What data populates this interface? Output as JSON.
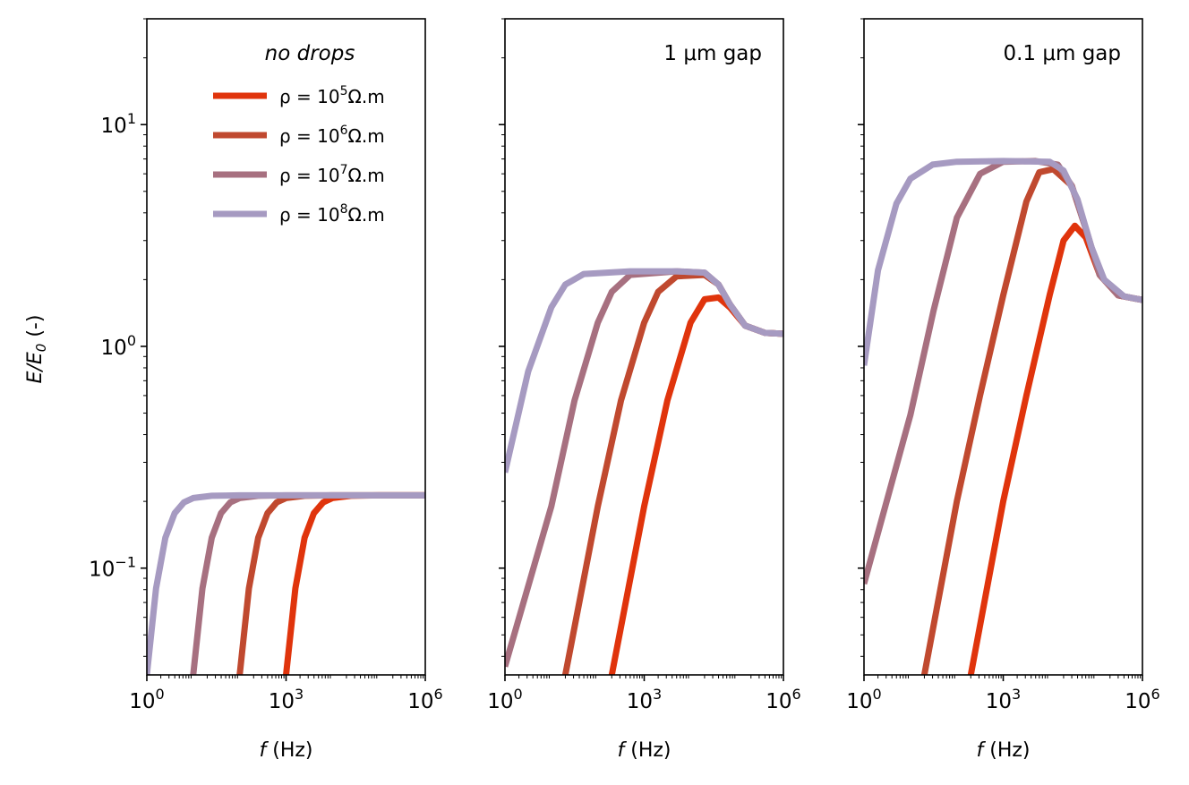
{
  "figure": {
    "ylabel_main": "E/E",
    "ylabel_sub": "0",
    "ylabel_unit": " (-)"
  },
  "legend": {
    "title": "no drops",
    "prefix": "ρ = 10",
    "suffix": "Ω.m",
    "entries": [
      {
        "exp": "5",
        "color": "#e0340c"
      },
      {
        "exp": "6",
        "color": "#c0492f"
      },
      {
        "exp": "7",
        "color": "#a77080"
      },
      {
        "exp": "8",
        "color": "#a69ac1"
      }
    ]
  },
  "axes": {
    "x_tick_base": "10",
    "x_tick_exps": [
      "0",
      "3",
      "6"
    ],
    "y_tick_base": "10",
    "y_tick_exps": [
      "1",
      "0",
      "−1"
    ],
    "x_label_var": "f",
    "x_label_unit": " (Hz)"
  },
  "chart_data": [
    {
      "type": "line",
      "title": "",
      "xlabel": "f (Hz)",
      "ylabel": "E/E0 (-)",
      "xscale": "log",
      "yscale": "log",
      "xlim": [
        1,
        1000000
      ],
      "ylim": [
        0.033,
        30
      ],
      "series": [
        {
          "name": "ρ = 10^5 Ω.m",
          "color": "#e0340c",
          "x": [
            1000,
            1585,
            2512,
            3981,
            6310,
            10000,
            25119,
            100000,
            1000000
          ],
          "y": [
            0.033,
            0.081,
            0.137,
            0.177,
            0.198,
            0.207,
            0.212,
            0.213,
            0.213
          ]
        },
        {
          "name": "ρ = 10^6 Ω.m",
          "color": "#c0492f",
          "x": [
            100,
            158,
            251,
            398,
            631,
            1000,
            2512,
            10000,
            1000000
          ],
          "y": [
            0.033,
            0.081,
            0.137,
            0.177,
            0.198,
            0.207,
            0.212,
            0.213,
            0.213
          ]
        },
        {
          "name": "ρ = 10^7 Ω.m",
          "color": "#a77080",
          "x": [
            10,
            15.8,
            25.1,
            39.8,
            63.1,
            100,
            251,
            1000,
            1000000
          ],
          "y": [
            0.033,
            0.081,
            0.137,
            0.177,
            0.198,
            0.207,
            0.212,
            0.213,
            0.213
          ]
        },
        {
          "name": "ρ = 10^8 Ω.m",
          "color": "#a69ac1",
          "x": [
            1,
            1.58,
            2.51,
            3.98,
            6.31,
            10,
            25.1,
            100,
            1000000
          ],
          "y": [
            0.033,
            0.081,
            0.137,
            0.177,
            0.198,
            0.207,
            0.212,
            0.213,
            0.213
          ]
        }
      ]
    },
    {
      "type": "line",
      "title": "1 μm gap",
      "xlabel": "f (Hz)",
      "ylabel": "",
      "xscale": "log",
      "yscale": "log",
      "xlim": [
        1,
        1000000
      ],
      "ylim": [
        0.033,
        30
      ],
      "series": [
        {
          "name": "ρ = 10^5 Ω.m",
          "color": "#e0340c",
          "x": [
            200,
            1000,
            3162,
            10000,
            20000,
            40000,
            70000,
            150000,
            400000,
            1000000
          ],
          "y": [
            0.033,
            0.19,
            0.57,
            1.28,
            1.63,
            1.66,
            1.5,
            1.24,
            1.15,
            1.14
          ]
        },
        {
          "name": "ρ = 10^6 Ω.m",
          "color": "#c0492f",
          "x": [
            20,
            100,
            316,
            1000,
            2000,
            5000,
            20000,
            40000,
            70000,
            150000,
            400000,
            1000000
          ],
          "y": [
            0.033,
            0.19,
            0.57,
            1.28,
            1.76,
            2.07,
            2.1,
            1.9,
            1.55,
            1.24,
            1.15,
            1.14
          ]
        },
        {
          "name": "ρ = 10^7 Ω.m",
          "color": "#a77080",
          "x": [
            1,
            10,
            31.6,
            100,
            200,
            500,
            5000,
            20000,
            40000,
            70000,
            150000,
            400000,
            1000000
          ],
          "y": [
            0.036,
            0.19,
            0.57,
            1.28,
            1.76,
            2.1,
            2.18,
            2.15,
            1.9,
            1.55,
            1.24,
            1.15,
            1.14
          ]
        },
        {
          "name": "ρ = 10^8 Ω.m",
          "color": "#a69ac1",
          "x": [
            1,
            3.16,
            10,
            20,
            50,
            500,
            5000,
            20000,
            40000,
            70000,
            150000,
            400000,
            1000000
          ],
          "y": [
            0.27,
            0.77,
            1.5,
            1.9,
            2.12,
            2.18,
            2.18,
            2.15,
            1.9,
            1.55,
            1.24,
            1.15,
            1.14
          ]
        }
      ]
    },
    {
      "type": "line",
      "title": "0.1 μm gap",
      "xlabel": "f (Hz)",
      "ylabel": "",
      "xscale": "log",
      "yscale": "log",
      "xlim": [
        1,
        1000000
      ],
      "ylim": [
        0.033,
        30
      ],
      "series": [
        {
          "name": "ρ = 10^5 Ω.m",
          "color": "#e0340c",
          "x": [
            200,
            1000,
            3162,
            10000,
            20000,
            35000,
            60000,
            120000,
            300000,
            1000000
          ],
          "y": [
            0.033,
            0.2,
            0.6,
            1.7,
            3.0,
            3.5,
            3.1,
            2.1,
            1.7,
            1.62
          ]
        },
        {
          "name": "ρ = 10^6 Ω.m",
          "color": "#c0492f",
          "x": [
            20,
            100,
            316,
            1000,
            3162,
            6000,
            12000,
            30000,
            60000,
            120000,
            300000,
            1000000
          ],
          "y": [
            0.033,
            0.2,
            0.6,
            1.7,
            4.5,
            6.1,
            6.3,
            5.3,
            3.4,
            2.1,
            1.7,
            1.62
          ]
        },
        {
          "name": "ρ = 10^7 Ω.m",
          "color": "#a77080",
          "x": [
            1,
            10,
            31.6,
            100,
            316,
            1000,
            5000,
            15000,
            30000,
            60000,
            120000,
            300000,
            1000000
          ],
          "y": [
            0.085,
            0.49,
            1.45,
            3.8,
            6.0,
            6.8,
            6.85,
            6.6,
            5.3,
            3.4,
            2.1,
            1.7,
            1.62
          ]
        },
        {
          "name": "ρ = 10^8 Ω.m",
          "color": "#a69ac1",
          "x": [
            1,
            2,
            5,
            10,
            30,
            100,
            1000,
            10000,
            20000,
            40000,
            80000,
            150000,
            400000,
            1000000
          ],
          "y": [
            0.82,
            2.2,
            4.4,
            5.7,
            6.6,
            6.8,
            6.85,
            6.8,
            6.2,
            4.6,
            2.8,
            2.0,
            1.68,
            1.62
          ]
        }
      ]
    }
  ]
}
